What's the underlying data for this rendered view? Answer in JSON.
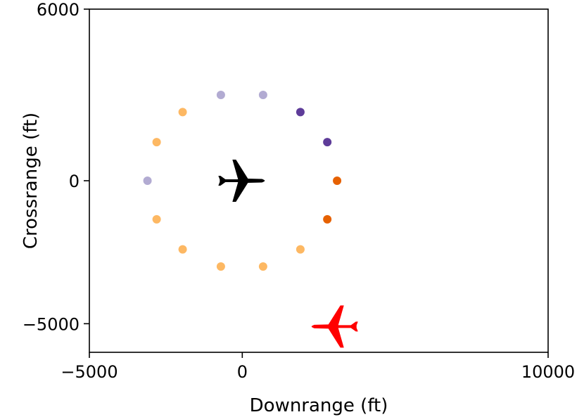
{
  "chart_data": {
    "type": "scatter",
    "title": "",
    "xlabel": "Downrange (ft)",
    "ylabel": "Crossrange (ft)",
    "xlim": [
      -5000,
      10000
    ],
    "ylim": [
      -6000,
      6000
    ],
    "xticks": [
      -5000,
      0,
      10000
    ],
    "xtick_labels": [
      "−5000",
      "0",
      "10000"
    ],
    "yticks": [
      6000,
      0,
      -5000
    ],
    "ytick_labels": [
      "6000",
      "0",
      "−5000"
    ],
    "grid": false,
    "colors": {
      "light_orange": "#fdb863",
      "dark_orange": "#e66101",
      "light_purple": "#b2abd2",
      "dark_purple": "#5e3c99",
      "ownship": "#000000",
      "intruder": "#ff0000"
    },
    "points": [
      {
        "x": 3100,
        "y": 0,
        "color": "#e66101"
      },
      {
        "x": 2780,
        "y": 1350,
        "color": "#5e3c99"
      },
      {
        "x": 1900,
        "y": 2400,
        "color": "#5e3c99"
      },
      {
        "x": 680,
        "y": 3000,
        "color": "#b2abd2"
      },
      {
        "x": -700,
        "y": 3000,
        "color": "#b2abd2"
      },
      {
        "x": -1950,
        "y": 2400,
        "color": "#fdb863"
      },
      {
        "x": -2800,
        "y": 1350,
        "color": "#fdb863"
      },
      {
        "x": -3100,
        "y": 0,
        "color": "#b2abd2"
      },
      {
        "x": -2800,
        "y": -1350,
        "color": "#fdb863"
      },
      {
        "x": -1950,
        "y": -2400,
        "color": "#fdb863"
      },
      {
        "x": -700,
        "y": -3000,
        "color": "#fdb863"
      },
      {
        "x": 680,
        "y": -3000,
        "color": "#fdb863"
      },
      {
        "x": 1900,
        "y": -2400,
        "color": "#fdb863"
      },
      {
        "x": 2780,
        "y": -1350,
        "color": "#e66101"
      }
    ],
    "aircraft": [
      {
        "name": "ownship",
        "x": 0,
        "y": 0,
        "heading": "east",
        "color": "#000000",
        "icon": "airplane-icon"
      },
      {
        "name": "intruder",
        "x": 3000,
        "y": -5100,
        "heading": "west",
        "color": "#ff0000",
        "icon": "airplane-icon"
      }
    ]
  }
}
